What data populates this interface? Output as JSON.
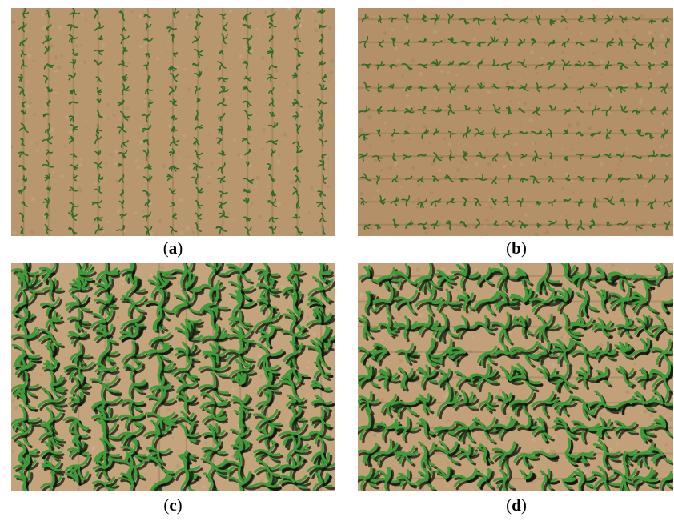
{
  "panels": [
    {
      "id": "a",
      "label": "a",
      "soil_color": "#b8976f",
      "plant_color": "#2f6a2a",
      "stage": "seedling",
      "row_orientation": "vertical"
    },
    {
      "id": "b",
      "label": "b",
      "soil_color": "#b39067",
      "plant_color": "#2f6a2a",
      "stage": "seedling",
      "row_orientation": "horizontal"
    },
    {
      "id": "c",
      "label": "c",
      "soil_color": "#c4a47d",
      "plant_color": "#3f9a3a",
      "stage": "grown",
      "row_orientation": "vertical"
    },
    {
      "id": "d",
      "label": "d",
      "soil_color": "#c2a079",
      "plant_color": "#3f9a3a",
      "stage": "grown",
      "row_orientation": "horizontal"
    }
  ],
  "captions": {
    "open": "(",
    "close": ")"
  }
}
